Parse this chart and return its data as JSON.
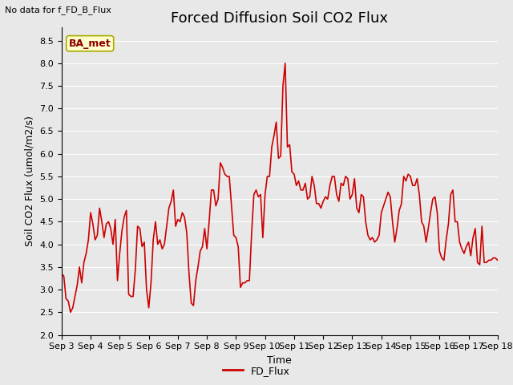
{
  "title": "Forced Diffusion Soil CO2 Flux",
  "top_left_text": "No data for f_FD_B_Flux",
  "xlabel": "Time",
  "ylabel": "Soil CO2 Flux (umol/m2/s)",
  "ylim": [
    2.0,
    8.8
  ],
  "yticks": [
    2.0,
    2.5,
    3.0,
    3.5,
    4.0,
    4.5,
    5.0,
    5.5,
    6.0,
    6.5,
    7.0,
    7.5,
    8.0,
    8.5
  ],
  "line_color": "#cc0000",
  "line_width": 1.2,
  "legend_label": "FD_Flux",
  "legend_line_color": "#cc0000",
  "background_color": "#e8e8e8",
  "plot_bg_color": "#e8e8e8",
  "grid_color": "white",
  "ba_met_label": "BA_met",
  "ba_met_bg": "#ffffcc",
  "ba_met_border": "#aaaa00",
  "title_fontsize": 13,
  "label_fontsize": 9,
  "tick_label_fontsize": 8,
  "x_tick_labels": [
    "Sep 3",
    "Sep 4",
    "Sep 5",
    "Sep 6",
    "Sep 7",
    "Sep 8",
    "Sep 9",
    "Sep 10",
    "Sep 11",
    "Sep 12",
    "Sep 13",
    "Sep 14",
    "Sep 15",
    "Sep 16",
    "Sep 17",
    "Sep 18"
  ],
  "y_values": [
    3.35,
    3.3,
    2.8,
    2.75,
    2.5,
    2.6,
    2.85,
    3.1,
    3.5,
    3.15,
    3.6,
    3.8,
    4.1,
    4.7,
    4.45,
    4.1,
    4.2,
    4.8,
    4.5,
    4.15,
    4.45,
    4.5,
    4.35,
    4.0,
    4.55,
    3.2,
    3.8,
    4.3,
    4.6,
    4.75,
    2.9,
    2.85,
    2.85,
    3.45,
    4.4,
    4.35,
    3.95,
    4.05,
    3.0,
    2.6,
    3.15,
    4.1,
    4.5,
    4.0,
    4.1,
    3.9,
    4.0,
    4.4,
    4.8,
    4.95,
    5.2,
    4.4,
    4.55,
    4.5,
    4.7,
    4.6,
    4.25,
    3.35,
    2.7,
    2.65,
    3.2,
    3.5,
    3.85,
    3.95,
    4.35,
    3.9,
    4.5,
    5.2,
    5.2,
    4.85,
    5.0,
    5.8,
    5.7,
    5.55,
    5.5,
    5.5,
    4.85,
    4.2,
    4.15,
    3.95,
    3.05,
    3.15,
    3.15,
    3.2,
    3.2,
    4.25,
    5.1,
    5.2,
    5.05,
    5.1,
    4.15,
    5.1,
    5.5,
    5.5,
    6.15,
    6.4,
    6.7,
    5.9,
    5.95,
    7.5,
    8.0,
    6.15,
    6.2,
    5.6,
    5.55,
    5.3,
    5.4,
    5.2,
    5.2,
    5.35,
    5.0,
    5.05,
    5.5,
    5.3,
    4.9,
    4.9,
    4.8,
    4.95,
    5.05,
    5.0,
    5.3,
    5.5,
    5.5,
    5.1,
    4.95,
    5.35,
    5.3,
    5.5,
    5.45,
    5.0,
    5.1,
    5.45,
    4.8,
    4.7,
    5.1,
    5.05,
    4.5,
    4.2,
    4.1,
    4.15,
    4.05,
    4.1,
    4.2,
    4.7,
    4.85,
    5.0,
    5.15,
    5.05,
    4.5,
    4.05,
    4.35,
    4.75,
    4.9,
    5.5,
    5.4,
    5.55,
    5.5,
    5.3,
    5.3,
    5.45,
    5.1,
    4.5,
    4.4,
    4.05,
    4.35,
    4.7,
    5.0,
    5.05,
    4.7,
    3.85,
    3.7,
    3.65,
    4.1,
    4.45,
    5.1,
    5.2,
    4.5,
    4.5,
    4.05,
    3.9,
    3.8,
    3.95,
    4.05,
    3.75,
    4.15,
    4.35,
    3.6,
    3.55,
    4.4,
    3.6,
    3.6,
    3.65,
    3.65,
    3.7,
    3.7,
    3.65
  ]
}
